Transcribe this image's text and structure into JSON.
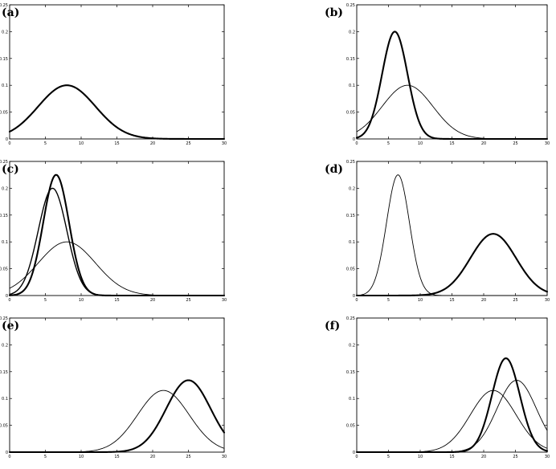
{
  "chart_data": [
    {
      "panel_label": "(a)",
      "type": "line",
      "xlim": [
        0,
        30
      ],
      "ylim": [
        0,
        0.25
      ],
      "xticks": [
        "0",
        "5",
        "10",
        "15",
        "20",
        "25",
        "30"
      ],
      "yticks": [
        "0",
        "0.05",
        "0.1",
        "0.15",
        "0.2",
        "0.25"
      ],
      "series": [
        {
          "mean": 8,
          "sd": 4,
          "peak": 0.1,
          "weight": "thick"
        }
      ]
    },
    {
      "panel_label": "(b)",
      "type": "line",
      "xlim": [
        0,
        30
      ],
      "ylim": [
        0,
        0.25
      ],
      "xticks": [
        "0",
        "5",
        "10",
        "15",
        "20",
        "25",
        "30"
      ],
      "yticks": [
        "0",
        "0.05",
        "0.1",
        "0.15",
        "0.2",
        "0.25"
      ],
      "series": [
        {
          "mean": 8,
          "sd": 4,
          "peak": 0.1,
          "weight": "thin"
        },
        {
          "mean": 6,
          "sd": 2,
          "peak": 0.2,
          "weight": "thick"
        }
      ]
    },
    {
      "panel_label": "(c)",
      "type": "line",
      "xlim": [
        0,
        30
      ],
      "ylim": [
        0,
        0.25
      ],
      "xticks": [
        "0",
        "5",
        "10",
        "15",
        "20",
        "25",
        "30"
      ],
      "yticks": [
        "0",
        "0.05",
        "0.1",
        "0.15",
        "0.2",
        "0.25"
      ],
      "series": [
        {
          "mean": 8,
          "sd": 4,
          "peak": 0.1,
          "weight": "thin"
        },
        {
          "mean": 6,
          "sd": 2,
          "peak": 0.2,
          "weight": "medium"
        },
        {
          "mean": 6.5,
          "sd": 1.8,
          "peak": 0.225,
          "weight": "thick"
        }
      ]
    },
    {
      "panel_label": "(d)",
      "type": "line",
      "xlim": [
        0,
        30
      ],
      "ylim": [
        0,
        0.25
      ],
      "xticks": [
        "0",
        "5",
        "10",
        "15",
        "20",
        "25",
        "30"
      ],
      "yticks": [
        "0",
        "0.05",
        "0.1",
        "0.15",
        "0.2",
        "0.25"
      ],
      "series": [
        {
          "mean": 6.5,
          "sd": 1.8,
          "peak": 0.225,
          "weight": "thin"
        },
        {
          "mean": 21.5,
          "sd": 3.6,
          "peak": 0.115,
          "weight": "thick"
        }
      ]
    },
    {
      "panel_label": "(e)",
      "type": "line",
      "xlim": [
        0,
        30
      ],
      "ylim": [
        0,
        0.25
      ],
      "xticks": [
        "0",
        "5",
        "10",
        "15",
        "20",
        "25",
        "30"
      ],
      "yticks": [
        "0",
        "0.05",
        "0.1",
        "0.15",
        "0.2",
        "0.25"
      ],
      "series": [
        {
          "mean": 21.5,
          "sd": 3.6,
          "peak": 0.115,
          "weight": "thin"
        },
        {
          "mean": 25,
          "sd": 3.1,
          "peak": 0.134,
          "weight": "thick"
        }
      ]
    },
    {
      "panel_label": "(f)",
      "type": "line",
      "xlim": [
        0,
        30
      ],
      "ylim": [
        0,
        0.25
      ],
      "xticks": [
        "0",
        "5",
        "10",
        "15",
        "20",
        "25",
        "30"
      ],
      "yticks": [
        "0",
        "0.05",
        "0.1",
        "0.15",
        "0.2",
        "0.25"
      ],
      "series": [
        {
          "mean": 21.5,
          "sd": 3.6,
          "peak": 0.115,
          "weight": "thin"
        },
        {
          "mean": 25.2,
          "sd": 3.1,
          "peak": 0.134,
          "weight": "thin"
        },
        {
          "mean": 23.5,
          "sd": 2.2,
          "peak": 0.175,
          "weight": "thick"
        }
      ]
    }
  ]
}
